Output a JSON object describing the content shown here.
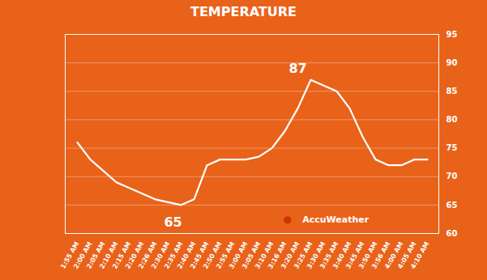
{
  "chart_data": {
    "type": "line",
    "title": "TEMPERATURE",
    "categories": [
      "1:55 AM",
      "2:00 AM",
      "2:05 AM",
      "2:10 AM",
      "2:15 AM",
      "2:20 AM",
      "2:26 AM",
      "2:30 AM",
      "2:35 AM",
      "2:40 AM",
      "2:45 AM",
      "2:50 AM",
      "2:55 AM",
      "3:00 AM",
      "3:05 AM",
      "3:10 AM",
      "3:16 AM",
      "3:20 AM",
      "3:25 AM",
      "3:30 AM",
      "3:35 AM",
      "3:40 AM",
      "3:45 AM",
      "3:50 AM",
      "3:56 AM",
      "4:00 AM",
      "4:05 AM",
      "4:10 AM"
    ],
    "values": [
      76,
      73,
      71,
      69,
      68,
      67,
      66,
      65.5,
      65,
      66,
      72,
      73,
      73,
      73,
      73.5,
      75,
      78,
      82,
      87,
      86,
      85,
      82,
      77,
      73,
      72,
      72,
      73,
      73
    ],
    "color": "#FFFFFF",
    "ylim": [
      60,
      95
    ],
    "yticks": [
      60,
      65,
      70,
      75,
      80,
      85,
      90,
      95
    ],
    "grid": true,
    "annotations": [
      {
        "text": "65",
        "x": "2:35 AM",
        "y": 65
      },
      {
        "text": "87",
        "x": "3:25 AM",
        "y": 87
      },
      {
        "text": "●",
        "color": "#CC3300"
      },
      {
        "text": "AccuWeather"
      }
    ]
  }
}
